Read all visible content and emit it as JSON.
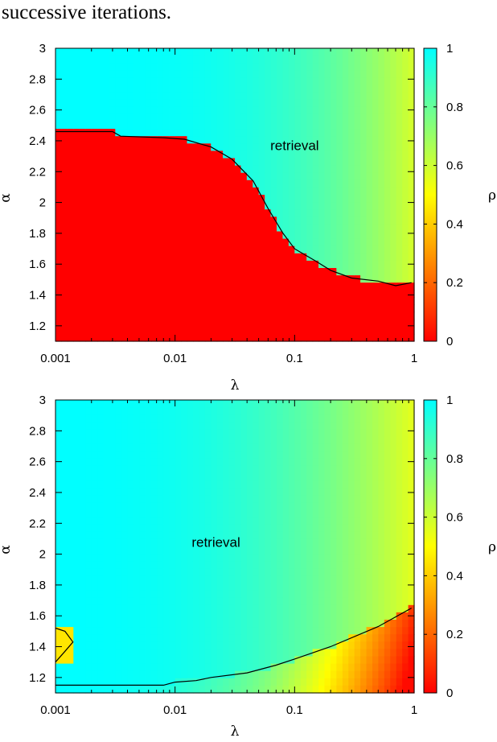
{
  "caption": "successive iterations.",
  "chart_data": [
    {
      "type": "heatmap",
      "x_scale": "log",
      "xlim": [
        0.001,
        1
      ],
      "ylim": [
        1.1,
        3
      ],
      "xlabel": "λ",
      "ylabel": "α",
      "colorbar_label": "ρ",
      "x_ticks": [
        "0.001",
        "0.01",
        "0.1",
        "1"
      ],
      "y_ticks": [
        "1.2",
        "1.4",
        "1.6",
        "1.8",
        "2",
        "2.2",
        "2.4",
        "2.6",
        "2.8",
        "3"
      ],
      "colorbar_ticks": [
        "0",
        "0.2",
        "0.4",
        "0.6",
        "0.8",
        "1"
      ],
      "colorbar_range": [
        0,
        1
      ],
      "colormap": [
        "#ff0000",
        "#ffff00",
        "#00ffff"
      ],
      "annotation": {
        "text": "retrieval",
        "x": 0.1,
        "y": 2.37
      },
      "boundary": [
        [
          0.001,
          2.46
        ],
        [
          0.003,
          2.46
        ],
        [
          0.0035,
          2.43
        ],
        [
          0.008,
          2.42
        ],
        [
          0.012,
          2.41
        ],
        [
          0.02,
          2.36
        ],
        [
          0.03,
          2.28
        ],
        [
          0.045,
          2.14
        ],
        [
          0.06,
          1.96
        ],
        [
          0.08,
          1.8
        ],
        [
          0.1,
          1.7
        ],
        [
          0.15,
          1.62
        ],
        [
          0.2,
          1.56
        ],
        [
          0.3,
          1.51
        ],
        [
          0.5,
          1.49
        ],
        [
          0.7,
          1.46
        ],
        [
          0.95,
          1.48
        ]
      ]
    },
    {
      "type": "heatmap",
      "x_scale": "log",
      "xlim": [
        0.001,
        1
      ],
      "ylim": [
        1.1,
        3
      ],
      "xlabel": "λ",
      "ylabel": "α",
      "colorbar_label": "ρ",
      "x_ticks": [
        "0.001",
        "0.01",
        "0.1",
        "1"
      ],
      "y_ticks": [
        "1.2",
        "1.4",
        "1.6",
        "1.8",
        "2",
        "2.2",
        "2.4",
        "2.6",
        "2.8",
        "3"
      ],
      "colorbar_ticks": [
        "0",
        "0.2",
        "0.4",
        "0.6",
        "0.8",
        "1"
      ],
      "colorbar_range": [
        0,
        1
      ],
      "colormap": [
        "#ff0000",
        "#ffff00",
        "#00ffff"
      ],
      "annotation": {
        "text": "retrieval",
        "x": 0.022,
        "y": 2.08
      },
      "boundary": [
        [
          0.001,
          1.15
        ],
        [
          0.008,
          1.15
        ],
        [
          0.01,
          1.17
        ],
        [
          0.015,
          1.18
        ],
        [
          0.02,
          1.2
        ],
        [
          0.04,
          1.23
        ],
        [
          0.07,
          1.28
        ],
        [
          0.1,
          1.32
        ],
        [
          0.2,
          1.4
        ],
        [
          0.5,
          1.53
        ],
        [
          0.95,
          1.65
        ]
      ],
      "island": [
        [
          0.001,
          1.52
        ],
        [
          0.0012,
          1.5
        ],
        [
          0.0014,
          1.43
        ],
        [
          0.0012,
          1.37
        ],
        [
          0.001,
          1.3
        ]
      ]
    }
  ]
}
